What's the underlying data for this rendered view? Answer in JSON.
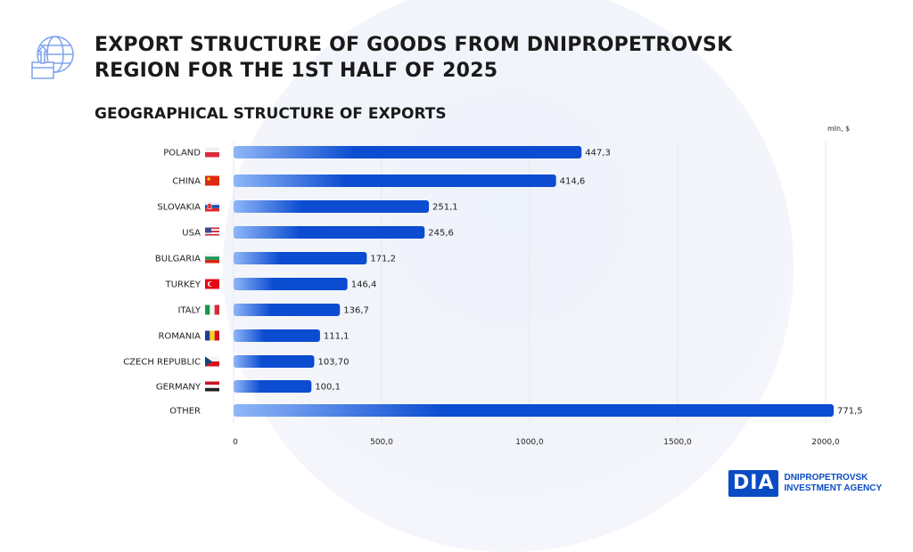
{
  "header": {
    "title_line1": "EXPORT STRUCTURE OF GOODS FROM DNIPROPETROVSK",
    "title_line2": "REGION FOR THE 1ST HALF OF 2025",
    "subtitle": "GEOGRAPHICAL STRUCTURE OF EXPORTS",
    "icon": "globe-export-box-icon"
  },
  "chart_data": {
    "type": "bar",
    "orientation": "horizontal",
    "unit_label": "mln, $",
    "categories": [
      "POLAND",
      "CHINA",
      "SLOVAKIA",
      "USA",
      "BULGARIA",
      "TURKEY",
      "ITALY",
      "ROMANIA",
      "CZECH REPUBLIC",
      "GERMANY",
      "OTHER"
    ],
    "values": [
      447.3,
      414.6,
      251.1,
      245.6,
      171.2,
      146.4,
      136.7,
      111.1,
      103.7,
      100.1,
      771.5
    ],
    "value_labels": [
      "447,3",
      "414,6",
      "251,1",
      "245,6",
      "171,2",
      "146,4",
      "136,7",
      "111,1",
      "103,70",
      "100,1",
      "771,5"
    ],
    "flags": [
      "poland",
      "china",
      "slovakia",
      "usa",
      "bulgaria",
      "turkey",
      "italy",
      "romania",
      "czech",
      "germany",
      ""
    ],
    "x_ticks": [
      "0",
      "500,0",
      "1000,0",
      "1500,0",
      "2000,0"
    ],
    "xlim": [
      0,
      2000
    ],
    "grid": true,
    "bar_color_start": "#8fb6f7",
    "bar_color_end": "#0b4cd0"
  },
  "logo": {
    "mark": "DIA",
    "line1": "DNIPROPETROVSK",
    "line2": "INVESTMENT AGENCY",
    "color": "#0b4cc4"
  }
}
